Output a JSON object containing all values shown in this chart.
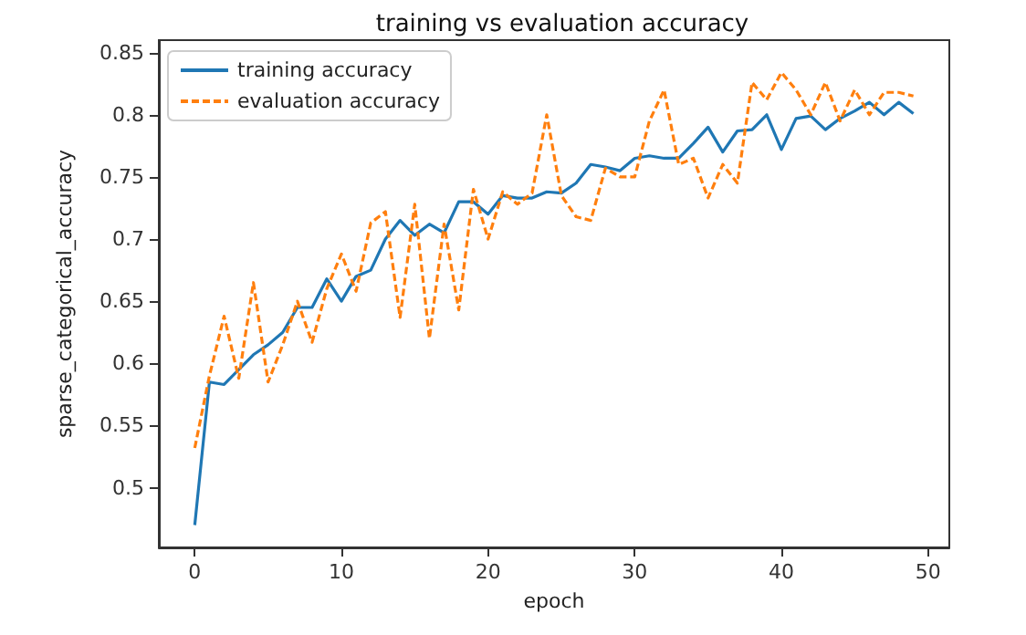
{
  "chart_data": {
    "type": "line",
    "title": "training vs evaluation accuracy",
    "xlabel": "epoch",
    "ylabel": "sparse_categorical_accuracy",
    "x": [
      0,
      1,
      2,
      3,
      4,
      5,
      6,
      7,
      8,
      9,
      10,
      11,
      12,
      13,
      14,
      15,
      16,
      17,
      18,
      19,
      20,
      21,
      22,
      23,
      24,
      25,
      26,
      27,
      28,
      29,
      30,
      31,
      32,
      33,
      34,
      35,
      36,
      37,
      38,
      39,
      40,
      41,
      42,
      43,
      44,
      45,
      46,
      47,
      48,
      49
    ],
    "series": [
      {
        "name": "training accuracy",
        "color": "#1f77b4",
        "line_style": "solid",
        "values": [
          0.47,
          0.585,
          0.583,
          0.595,
          0.607,
          0.615,
          0.625,
          0.645,
          0.645,
          0.668,
          0.65,
          0.67,
          0.675,
          0.7,
          0.715,
          0.703,
          0.712,
          0.705,
          0.73,
          0.73,
          0.72,
          0.735,
          0.733,
          0.733,
          0.738,
          0.737,
          0.745,
          0.76,
          0.758,
          0.755,
          0.765,
          0.767,
          0.765,
          0.765,
          0.777,
          0.79,
          0.77,
          0.787,
          0.788,
          0.8,
          0.772,
          0.797,
          0.799,
          0.788,
          0.797,
          0.803,
          0.81,
          0.8,
          0.81,
          0.801
        ]
      },
      {
        "name": "evaluation accuracy",
        "color": "#ff7f0e",
        "line_style": "dashed",
        "values": [
          0.532,
          0.59,
          0.638,
          0.588,
          0.665,
          0.585,
          0.615,
          0.65,
          0.617,
          0.66,
          0.688,
          0.658,
          0.713,
          0.722,
          0.637,
          0.728,
          0.62,
          0.712,
          0.643,
          0.74,
          0.7,
          0.738,
          0.728,
          0.737,
          0.8,
          0.735,
          0.718,
          0.715,
          0.757,
          0.75,
          0.75,
          0.795,
          0.82,
          0.76,
          0.765,
          0.733,
          0.76,
          0.745,
          0.826,
          0.812,
          0.834,
          0.82,
          0.8,
          0.826,
          0.795,
          0.82,
          0.8,
          0.818,
          0.818,
          0.815
        ]
      }
    ],
    "xlim": [
      -2.45,
      51.45
    ],
    "xticks": [
      0,
      10,
      20,
      30,
      40,
      50
    ],
    "ylim": [
      0.452,
      0.86
    ],
    "yticks": [
      0.5,
      0.55,
      0.6,
      0.65,
      0.7,
      0.75,
      0.8,
      0.85
    ],
    "legend": "top left",
    "grid": false,
    "marker": "none"
  }
}
